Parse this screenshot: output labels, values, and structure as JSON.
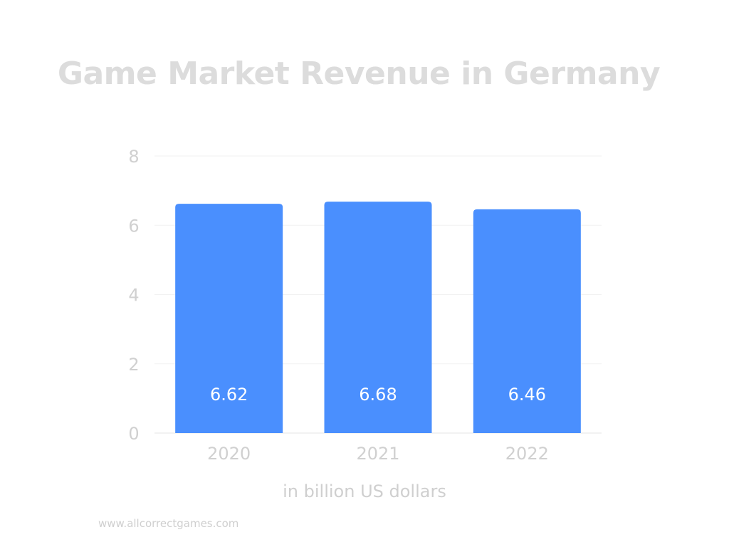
{
  "chart_data": {
    "type": "bar",
    "title": "Game Market Revenue in Germany",
    "xlabel": "in billion US dollars",
    "ylabel": "",
    "categories": [
      "2020",
      "2021",
      "2022"
    ],
    "values": [
      6.62,
      6.68,
      6.46
    ],
    "value_labels": [
      "6.62",
      "6.68",
      "6.46"
    ],
    "ylim": [
      0,
      8
    ],
    "yticks": [
      "0",
      "2",
      "4",
      "6",
      "8"
    ],
    "grid": true,
    "legend": "none",
    "bar_color": "#4a8ffe"
  },
  "footer": {
    "source": "www.allcorrectgames.com"
  }
}
